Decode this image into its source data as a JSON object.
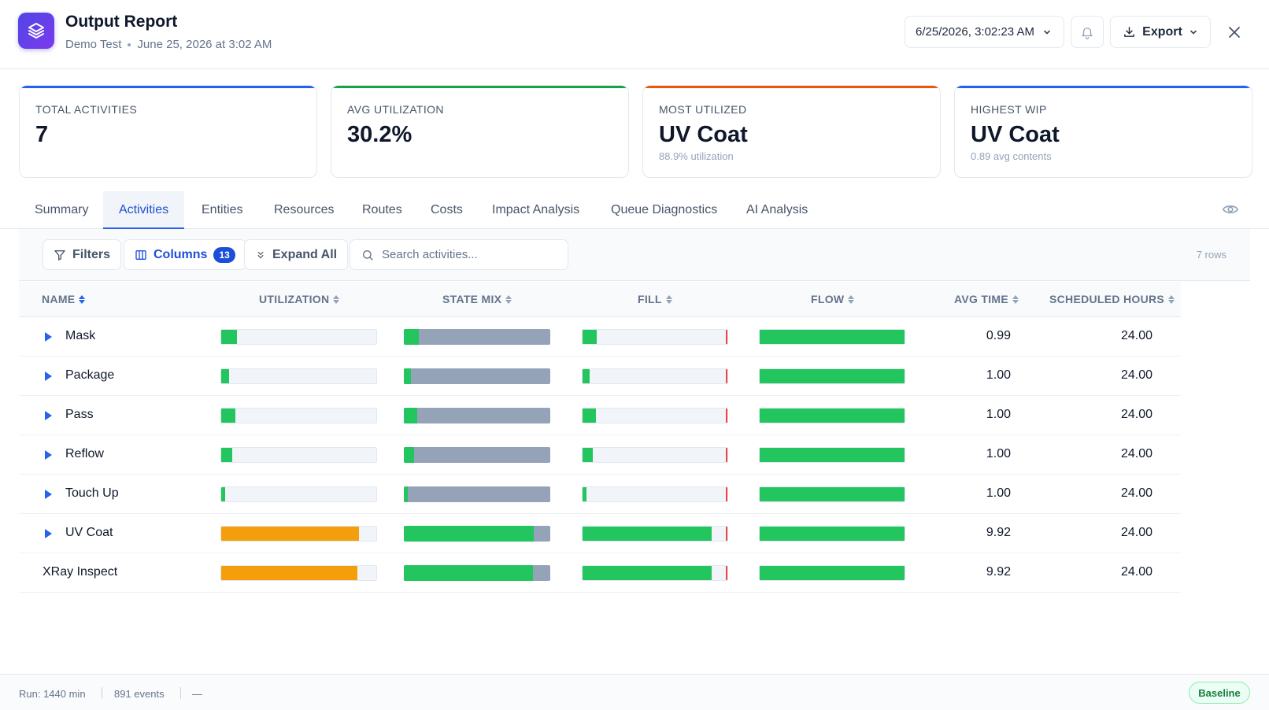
{
  "header": {
    "title": "Output Report",
    "scenario": "Demo Test",
    "run_date": "June 25, 2026 at 3:02 AM",
    "run_selector": "6/25/2026, 3:02:23 AM",
    "export_label": "Export"
  },
  "kpis": [
    {
      "label": "TOTAL ACTIVITIES",
      "value": "7",
      "sub": "",
      "accent": "#2563eb"
    },
    {
      "label": "AVG UTILIZATION",
      "value": "30.2%",
      "sub": "",
      "accent": "#16a34a"
    },
    {
      "label": "MOST UTILIZED",
      "value": "UV Coat",
      "sub": "88.9% utilization",
      "accent": "#ea580c"
    },
    {
      "label": "HIGHEST WIP",
      "value": "UV Coat",
      "sub": "0.89 avg contents",
      "accent": "#2563eb"
    }
  ],
  "tabs": [
    "Summary",
    "Activities",
    "Entities",
    "Resources",
    "Routes",
    "Costs",
    "Impact Analysis",
    "Queue Diagnostics",
    "AI Analysis"
  ],
  "active_tab": "Activities",
  "toolbar": {
    "filters_label": "Filters",
    "columns_label": "Columns",
    "columns_count": "13",
    "expand_label": "Expand All",
    "search_placeholder": "Search activities...",
    "row_count": "7 rows"
  },
  "table": {
    "columns": [
      "NAME",
      "UTILIZATION",
      "STATE MIX",
      "FILL",
      "FLOW",
      "AVG TIME",
      "SCHEDULED HOURS"
    ],
    "rows": [
      {
        "name": "Mask",
        "expandable": true,
        "utilization": 0.1,
        "util_color": "#22c55e",
        "state_mix": 0.1,
        "state_color": "#22c55e",
        "fill": 0.1,
        "flow": 1.0,
        "avg_time": "0.99",
        "scheduled_hours": "24.00"
      },
      {
        "name": "Package",
        "expandable": true,
        "utilization": 0.05,
        "util_color": "#22c55e",
        "state_mix": 0.05,
        "state_color": "#22c55e",
        "fill": 0.05,
        "flow": 1.0,
        "avg_time": "1.00",
        "scheduled_hours": "24.00"
      },
      {
        "name": "Pass",
        "expandable": true,
        "utilization": 0.09,
        "util_color": "#22c55e",
        "state_mix": 0.09,
        "state_color": "#22c55e",
        "fill": 0.09,
        "flow": 1.0,
        "avg_time": "1.00",
        "scheduled_hours": "24.00"
      },
      {
        "name": "Reflow",
        "expandable": true,
        "utilization": 0.07,
        "util_color": "#22c55e",
        "state_mix": 0.07,
        "state_color": "#22c55e",
        "fill": 0.07,
        "flow": 1.0,
        "avg_time": "1.00",
        "scheduled_hours": "24.00"
      },
      {
        "name": "Touch Up",
        "expandable": true,
        "utilization": 0.025,
        "util_color": "#22c55e",
        "state_mix": 0.025,
        "state_color": "#22c55e",
        "fill": 0.025,
        "flow": 1.0,
        "avg_time": "1.00",
        "scheduled_hours": "24.00"
      },
      {
        "name": "UV Coat",
        "expandable": true,
        "utilization": 0.889,
        "util_color": "#f59e0b",
        "state_mix": 0.889,
        "state_color": "#22c55e",
        "fill": 0.89,
        "flow": 1.0,
        "avg_time": "9.92",
        "scheduled_hours": "24.00"
      },
      {
        "name": "XRay Inspect",
        "expandable": false,
        "utilization": 0.88,
        "util_color": "#f59e0b",
        "state_mix": 0.88,
        "state_color": "#22c55e",
        "fill": 0.89,
        "flow": 1.0,
        "avg_time": "9.92",
        "scheduled_hours": "24.00"
      }
    ]
  },
  "footer": {
    "run": "Run: 1440 min",
    "events": "891 events",
    "extra": "—",
    "baseline": "Baseline"
  },
  "colors": {
    "idle": "#94a3b8",
    "green": "#22c55e",
    "orange": "#f59e0b",
    "cap": "#ef4444",
    "accent_blue": "#2563eb"
  }
}
